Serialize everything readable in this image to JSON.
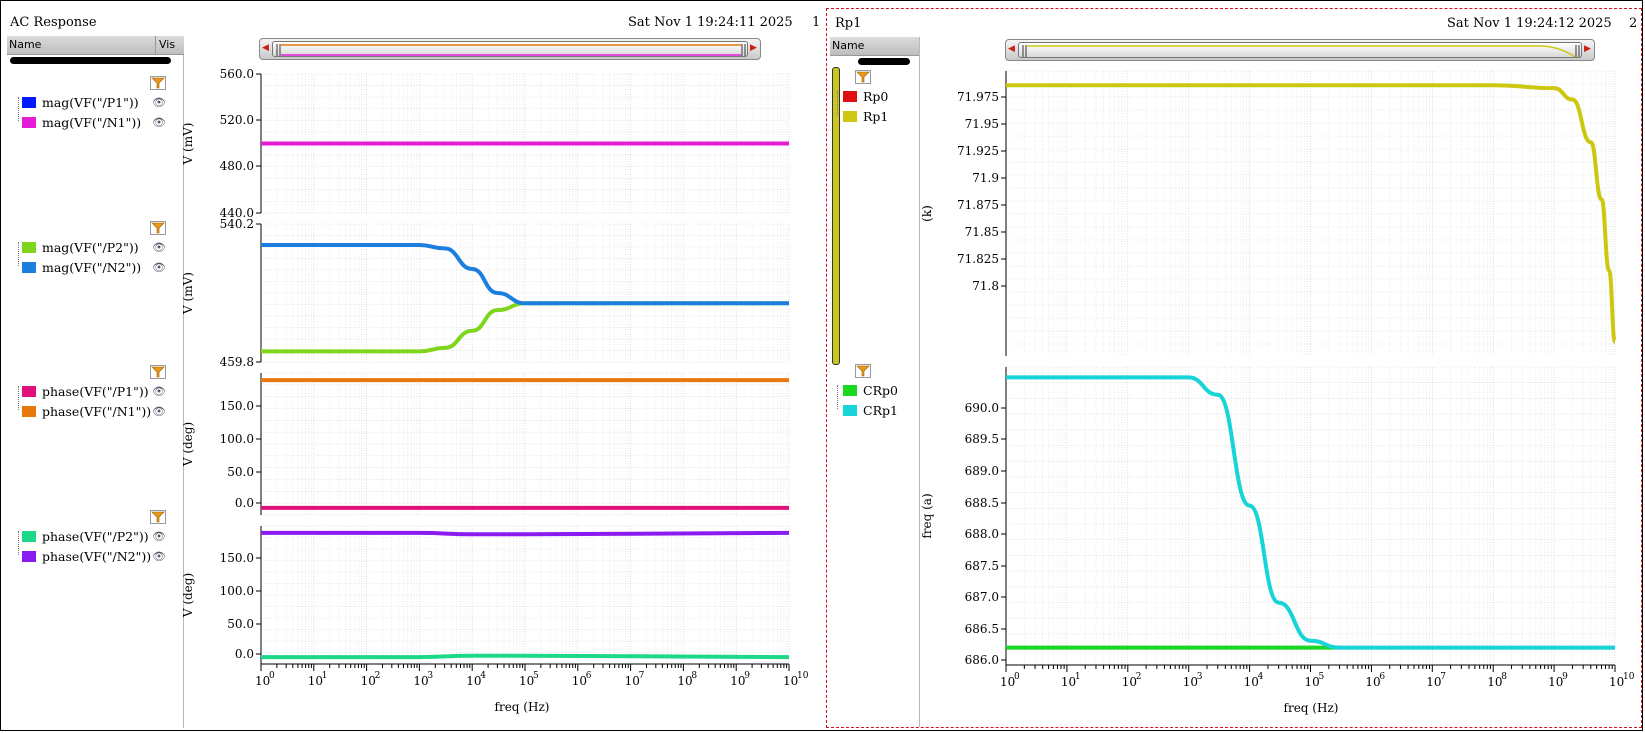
{
  "windows": [
    {
      "title": "AC Response",
      "timestamp": "Sat Nov 1 19:24:11 2025",
      "number": "1",
      "legend_header": {
        "name": "Name",
        "vis": "Vis"
      },
      "strips": [
        {
          "ylabel": "V (mV)",
          "yticks": [
            "560.0",
            "520.0",
            "480.0",
            "440.0"
          ],
          "traces": [
            {
              "name": "mag(VF(\"/P1\"))",
              "color": "#0019ff"
            },
            {
              "name": "mag(VF(\"/N1\"))",
              "color": "#e31cd8"
            }
          ]
        },
        {
          "ylabel": "V (mV)",
          "yticks": [
            "540.2",
            "459.8"
          ],
          "traces": [
            {
              "name": "mag(VF(\"/P2\"))",
              "color": "#7fd51b"
            },
            {
              "name": "mag(VF(\"/N2\"))",
              "color": "#1c7fe0"
            }
          ]
        },
        {
          "ylabel": "V (deg)",
          "yticks": [
            "150.0",
            "100.0",
            "50.0",
            "0.0"
          ],
          "traces": [
            {
              "name": "phase(VF(\"/P1\"))",
              "color": "#e0117a"
            },
            {
              "name": "phase(VF(\"/N1\"))",
              "color": "#e6780e"
            }
          ]
        },
        {
          "ylabel": "V (deg)",
          "yticks": [
            "150.0",
            "100.0",
            "50.0",
            "0.0"
          ],
          "traces": [
            {
              "name": "phase(VF(\"/P2\"))",
              "color": "#1ed88a"
            },
            {
              "name": "phase(VF(\"/N2\"))",
              "color": "#8a1bf0"
            }
          ]
        }
      ],
      "xlabel": "freq (Hz)"
    },
    {
      "title": "Rp1",
      "timestamp": "Sat Nov 1 19:24:12 2025",
      "number": "2",
      "legend_header": {
        "name": "Name"
      },
      "strips": [
        {
          "ylabel": "(k)",
          "yticks": [
            "71.975",
            "71.95",
            "71.925",
            "71.9",
            "71.875",
            "71.85",
            "71.825",
            "71.8"
          ],
          "traces": [
            {
              "name": "Rp0",
              "color": "#e01010"
            },
            {
              "name": "Rp1",
              "color": "#cdc80f"
            }
          ]
        },
        {
          "ylabel": "freq (a)",
          "yticks": [
            "690.0",
            "689.5",
            "689.0",
            "688.5",
            "688.0",
            "687.5",
            "687.0",
            "686.5",
            "686.0"
          ],
          "traces": [
            {
              "name": "CRp0",
              "color": "#18d822"
            },
            {
              "name": "CRp1",
              "color": "#16d4d8"
            }
          ]
        }
      ],
      "xlabel": "freq (Hz)"
    }
  ],
  "x_tick_bases": [
    "10",
    "10",
    "10",
    "10",
    "10",
    "10",
    "10",
    "10",
    "10",
    "10",
    "10"
  ],
  "x_tick_exponents": [
    "0",
    "1",
    "2",
    "3",
    "4",
    "5",
    "6",
    "7",
    "8",
    "9",
    "10"
  ],
  "chart_data": [
    {
      "type": "line",
      "x_scale": "log",
      "xlim": [
        1,
        10000000000
      ],
      "ylim": [
        440,
        560
      ],
      "series": [
        {
          "name": "mag(VF(\"/P1\"))",
          "x": [
            1,
            10000000000
          ],
          "y": [
            500,
            500
          ]
        },
        {
          "name": "mag(VF(\"/N1\"))",
          "x": [
            1,
            10000000000
          ],
          "y": [
            500,
            500
          ]
        }
      ]
    },
    {
      "type": "line",
      "x_scale": "log",
      "xlim": [
        1,
        10000000000
      ],
      "ylim": [
        459.8,
        540.2
      ],
      "series": [
        {
          "name": "mag(VF(\"/P2\"))",
          "x": [
            1,
            1000,
            3000,
            10000,
            30000,
            100000,
            10000000000
          ],
          "y": [
            466,
            466,
            468,
            478,
            490,
            494,
            494
          ]
        },
        {
          "name": "mag(VF(\"/N2\"))",
          "x": [
            1,
            1000,
            3000,
            10000,
            30000,
            100000,
            10000000000
          ],
          "y": [
            528,
            528,
            526,
            514,
            500,
            494,
            494
          ]
        }
      ]
    },
    {
      "type": "line",
      "x_scale": "log",
      "xlim": [
        1,
        10000000000
      ],
      "ylim": [
        -10,
        190
      ],
      "series": [
        {
          "name": "phase(VF(\"/P1\"))",
          "x": [
            1,
            10000000000
          ],
          "y": [
            0,
            0
          ]
        },
        {
          "name": "phase(VF(\"/N1\"))",
          "x": [
            1,
            10000000000
          ],
          "y": [
            180,
            180
          ]
        }
      ]
    },
    {
      "type": "line",
      "x_scale": "log",
      "xlim": [
        1,
        10000000000
      ],
      "ylim": [
        -10,
        190
      ],
      "series": [
        {
          "name": "phase(VF(\"/P2\"))",
          "x": [
            1,
            1000,
            10000,
            100000,
            10000000000
          ],
          "y": [
            0,
            0,
            2,
            2,
            0
          ]
        },
        {
          "name": "phase(VF(\"/N2\"))",
          "x": [
            1,
            1000,
            10000,
            100000,
            10000000000
          ],
          "y": [
            180,
            180,
            178,
            178,
            180
          ]
        }
      ]
    },
    {
      "type": "line",
      "x_scale": "log",
      "xlim": [
        1,
        10000000000
      ],
      "ylim": [
        71.79,
        71.99
      ],
      "series": [
        {
          "name": "Rp1",
          "x": [
            1,
            100000000,
            1000000000,
            2000000000,
            4000000000,
            6000000000,
            8000000000,
            10000000000
          ],
          "y": [
            71.98,
            71.98,
            71.978,
            71.97,
            71.94,
            71.9,
            71.85,
            71.8
          ]
        }
      ]
    },
    {
      "type": "line",
      "x_scale": "log",
      "xlim": [
        1,
        10000000000
      ],
      "ylim": [
        685.9,
        690.2
      ],
      "series": [
        {
          "name": "CRp0",
          "x": [
            1,
            300000
          ],
          "y": [
            686.15,
            686.15
          ]
        },
        {
          "name": "CRp1",
          "x": [
            1,
            1000,
            3000,
            10000,
            30000,
            100000,
            300000,
            10000000000
          ],
          "y": [
            690.05,
            690.05,
            689.8,
            688.2,
            686.8,
            686.25,
            686.15,
            686.15
          ]
        }
      ]
    }
  ]
}
